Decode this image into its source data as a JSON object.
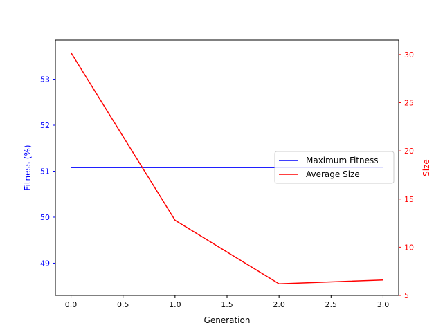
{
  "chart_data": {
    "type": "line",
    "x": [
      0,
      1,
      2,
      3
    ],
    "series": [
      {
        "name": "Maximum Fitness",
        "axis": "left",
        "color": "#0000ff",
        "values": [
          51.08,
          51.08,
          51.08,
          51.08
        ]
      },
      {
        "name": "Average Size",
        "axis": "right",
        "color": "#ff0000",
        "values": [
          30.2,
          12.8,
          6.2,
          6.6
        ]
      }
    ],
    "xlabel": "Generation",
    "ylabel_left": "Fitness (%)",
    "ylabel_right": "Size",
    "xlim": [
      -0.15,
      3.15
    ],
    "ylim_left": [
      48.3,
      53.85
    ],
    "ylim_right": [
      5,
      31.5
    ],
    "xticks": [
      0,
      0.5,
      1,
      1.5,
      2,
      2.5,
      3
    ],
    "xtick_labels": [
      "0.0",
      "0.5",
      "1.0",
      "1.5",
      "2.0",
      "2.5",
      "3.0"
    ],
    "yticks_left": [
      49,
      50,
      51,
      52,
      53
    ],
    "yticks_right": [
      5,
      10,
      15,
      20,
      25,
      30
    ],
    "left_axis_color": "#0000ff",
    "right_axis_color": "#ff0000",
    "grid": false,
    "legend_position": "center-right"
  }
}
